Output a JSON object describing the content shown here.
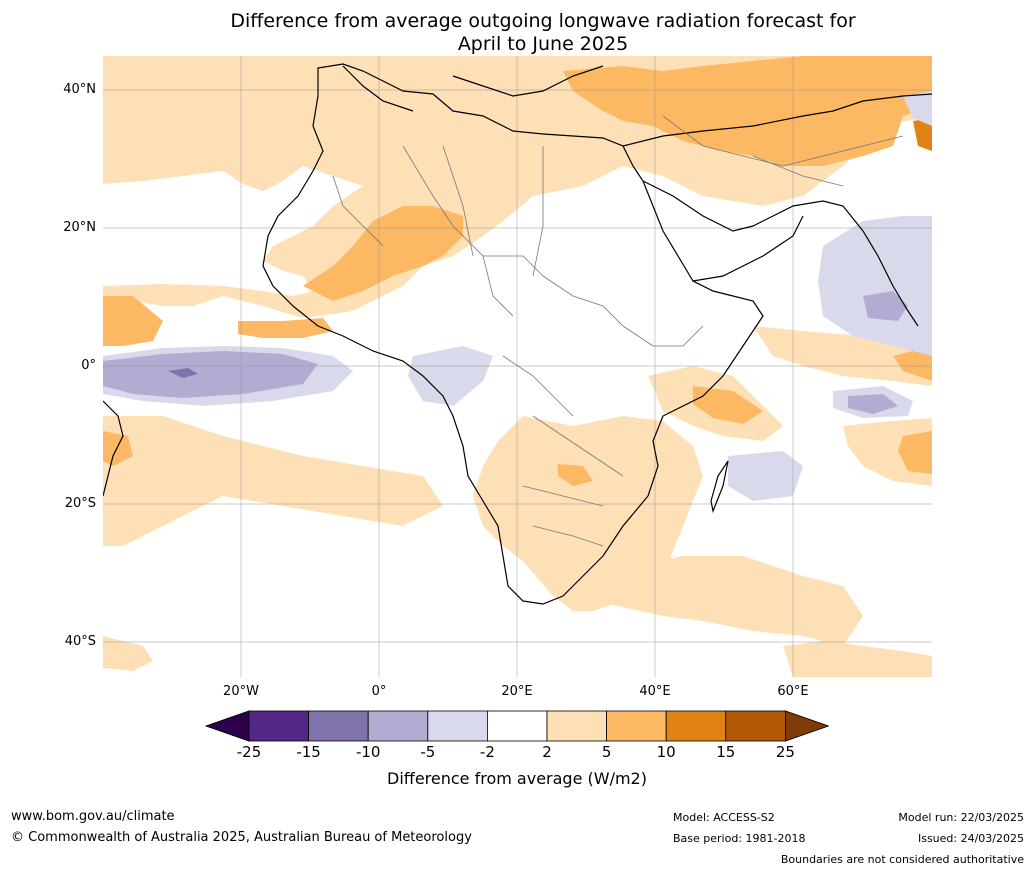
{
  "title_line1": "Difference from average outgoing longwave radiation forecast for",
  "title_line2": "April to June 2025",
  "lat_labels": [
    "40°N",
    "20°N",
    "0°",
    "20°S",
    "40°S"
  ],
  "lon_labels": [
    "20°W",
    "0°",
    "20°E",
    "40°E",
    "60°E"
  ],
  "colorbar": {
    "ticks": [
      "-25",
      "-15",
      "-10",
      "-5",
      "-2",
      "2",
      "5",
      "10",
      "15",
      "25"
    ],
    "colors": [
      "#2d004b",
      "#542788",
      "#8073ac",
      "#b2abd2",
      "#d8daeb",
      "#ffffff",
      "#fee0b6",
      "#fdb863",
      "#e08214",
      "#b35806",
      "#7f3b08"
    ],
    "label": "Difference from average (W/m2)"
  },
  "footer": {
    "website": "www.bom.gov.au/climate",
    "copyright": "© Commonwealth of Australia 2025, Australian Bureau of Meteorology",
    "model": "Model: ACCESS-S2",
    "base_period": "Base period: 1981-2018",
    "model_run": "Model run: 22/03/2025",
    "issued": "Issued: 24/03/2025",
    "disclaimer": "Boundaries are not considered authoritative"
  }
}
